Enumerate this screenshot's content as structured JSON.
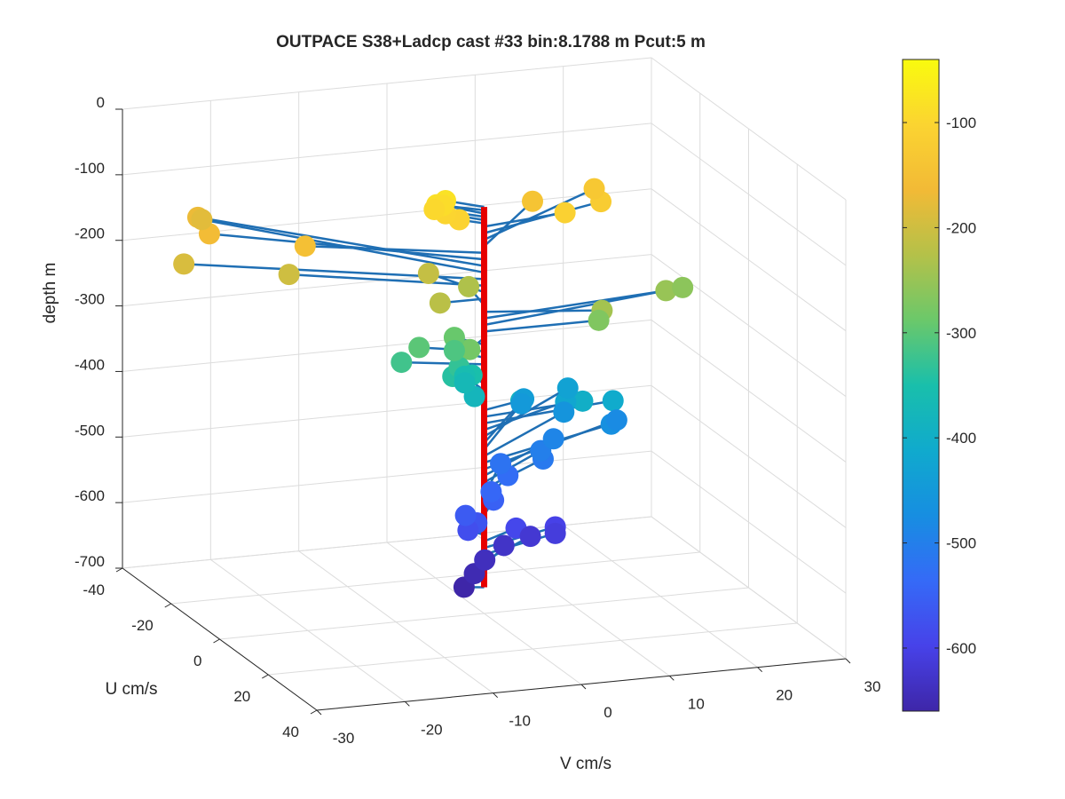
{
  "chart_data": {
    "type": "scatter",
    "title": "OUTPACE S38+Ladcp cast #33 bin:8.1788 m  Pcut:5 m",
    "xlabel": "V cm/s",
    "ylabel": "U cm/s",
    "zlabel": "depth m",
    "xlim": [
      -30,
      30
    ],
    "ylim": [
      -40,
      40
    ],
    "zlim": [
      -700,
      0
    ],
    "xticks": [
      "-30",
      "-20",
      "-10",
      "0",
      "10",
      "20",
      "30"
    ],
    "yticks": [
      "-40",
      "-20",
      "0",
      "20",
      "40"
    ],
    "zticks": [
      "0",
      "-100",
      "-200",
      "-300",
      "-400",
      "-500",
      "-600",
      "-700"
    ],
    "colorbar": {
      "ticks": [
        "-100",
        "-200",
        "-300",
        "-400",
        "-500",
        "-600"
      ],
      "range": [
        -660,
        -40
      ],
      "colormap": "parula"
    },
    "grid": true,
    "profile_line": {
      "color": "#e60000",
      "depth_range": [
        -660,
        -80
      ]
    },
    "stick_color": "#1f6fb4",
    "series": [
      {
        "depth": [
          -80,
          -85,
          -90,
          -95,
          -100,
          -105,
          -110,
          -120,
          -130,
          -140,
          -150,
          -160,
          -170,
          -180,
          -190,
          -200,
          -210,
          -220,
          -230,
          -240,
          -250,
          -260,
          -270,
          -280,
          -290,
          -300,
          -310,
          -320,
          -330,
          -340,
          -350,
          -360,
          -370,
          -380,
          -390,
          -400,
          -410,
          -420,
          -430,
          -440,
          -450,
          -460,
          -470,
          -480,
          -490,
          -500,
          -510,
          -520,
          -530,
          -540,
          -550,
          -560,
          -570,
          -580,
          -590,
          -600,
          -610,
          -620,
          -630,
          -640,
          -650,
          -660
        ],
        "u": [
          -5,
          -5,
          -6,
          -6,
          -5,
          -3,
          -3,
          -10,
          -20,
          -20,
          -12,
          -26,
          -38,
          -40,
          -22,
          -15,
          -12,
          0,
          -10,
          5,
          -5,
          -9,
          0,
          5,
          -5,
          -5,
          -5,
          -5,
          -3,
          -2,
          -5,
          -8,
          -8,
          -4,
          -3,
          -3,
          -5,
          -10,
          -20,
          -20,
          -21,
          -18,
          -13,
          -18,
          -15,
          -13,
          -12,
          -15,
          -12,
          -8,
          -7,
          -4,
          -3,
          -3,
          -5,
          -7,
          -7,
          -10,
          -10,
          -7,
          -4,
          -1
        ],
        "v": [
          -3,
          -4,
          -3,
          -4,
          -3,
          -2,
          10,
          16,
          18,
          11,
          -17,
          -24,
          -22,
          -21,
          -28,
          -18,
          -3,
          -5,
          1,
          12,
          22,
          25,
          13,
          -3,
          -2,
          -6,
          -2,
          -8,
          -2,
          -3,
          0,
          0,
          0,
          0,
          5,
          12,
          16,
          12,
          15,
          10,
          10,
          14,
          18,
          20,
          12,
          10,
          10,
          6,
          6,
          3,
          3,
          -1,
          0,
          -1,
          5,
          10,
          10,
          8,
          5,
          2,
          0,
          -2
        ]
      }
    ]
  }
}
